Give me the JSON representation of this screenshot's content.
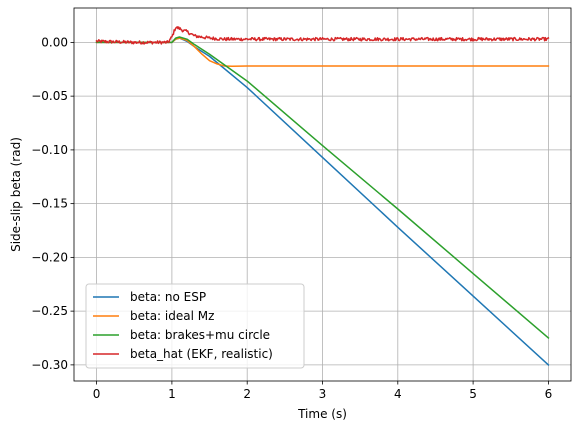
{
  "chart_data": {
    "type": "line",
    "title": "",
    "xlabel": "Time (s)",
    "ylabel": "Side-slip beta (rad)",
    "xlim": [
      -0.3,
      6.3
    ],
    "ylim": [
      -0.315,
      0.032
    ],
    "xticks": [
      0,
      1,
      2,
      3,
      4,
      5,
      6
    ],
    "yticks": [
      0.0,
      -0.05,
      -0.1,
      -0.15,
      -0.2,
      -0.25,
      -0.3
    ],
    "xtick_labels": [
      "0",
      "1",
      "2",
      "3",
      "4",
      "5",
      "6"
    ],
    "ytick_labels": [
      "0.00",
      "−0.05",
      "−0.10",
      "−0.15",
      "−0.20",
      "−0.25",
      "−0.30"
    ],
    "grid": true,
    "legend_position": "lower-left",
    "series": [
      {
        "name": "beta: no ESP",
        "color": "#1f77b4",
        "x": [
          0,
          1.0,
          1.05,
          1.1,
          1.2,
          1.3,
          1.5,
          2,
          3,
          4,
          5,
          6
        ],
        "y": [
          0,
          0,
          0.003,
          0.004,
          0.001,
          -0.004,
          -0.013,
          -0.042,
          -0.107,
          -0.172,
          -0.236,
          -0.3
        ]
      },
      {
        "name": "beta: ideal Mz",
        "color": "#ff7f0e",
        "x": [
          0,
          1.0,
          1.05,
          1.1,
          1.2,
          1.3,
          1.4,
          1.5,
          1.6,
          1.7,
          1.8,
          2,
          3,
          4,
          5,
          6
        ],
        "y": [
          0,
          0,
          0.003,
          0.004,
          0.002,
          -0.004,
          -0.011,
          -0.017,
          -0.02,
          -0.022,
          -0.0222,
          -0.022,
          -0.022,
          -0.022,
          -0.022,
          -0.022
        ]
      },
      {
        "name": "beta: brakes+mu circle",
        "color": "#2ca02c",
        "x": [
          0,
          1.0,
          1.05,
          1.1,
          1.2,
          1.3,
          1.5,
          2,
          3,
          4,
          5,
          6
        ],
        "y": [
          0,
          0,
          0.004,
          0.005,
          0.003,
          -0.002,
          -0.011,
          -0.036,
          -0.096,
          -0.155,
          -0.215,
          -0.275
        ]
      },
      {
        "name": "beta_hat (EKF, realistic)",
        "color": "#d62728",
        "x": [
          0,
          0.5,
          0.95,
          1.0,
          1.05,
          1.1,
          1.15,
          1.2,
          1.25,
          1.3,
          1.4,
          1.5,
          1.7,
          2,
          3,
          4,
          5,
          6
        ],
        "y": [
          0.001,
          0.0,
          0.0,
          0.005,
          0.014,
          0.013,
          0.011,
          0.01,
          0.008,
          0.006,
          0.005,
          0.004,
          0.003,
          0.003,
          0.003,
          0.003,
          0.003,
          0.003
        ],
        "noise": 0.0015
      }
    ]
  }
}
